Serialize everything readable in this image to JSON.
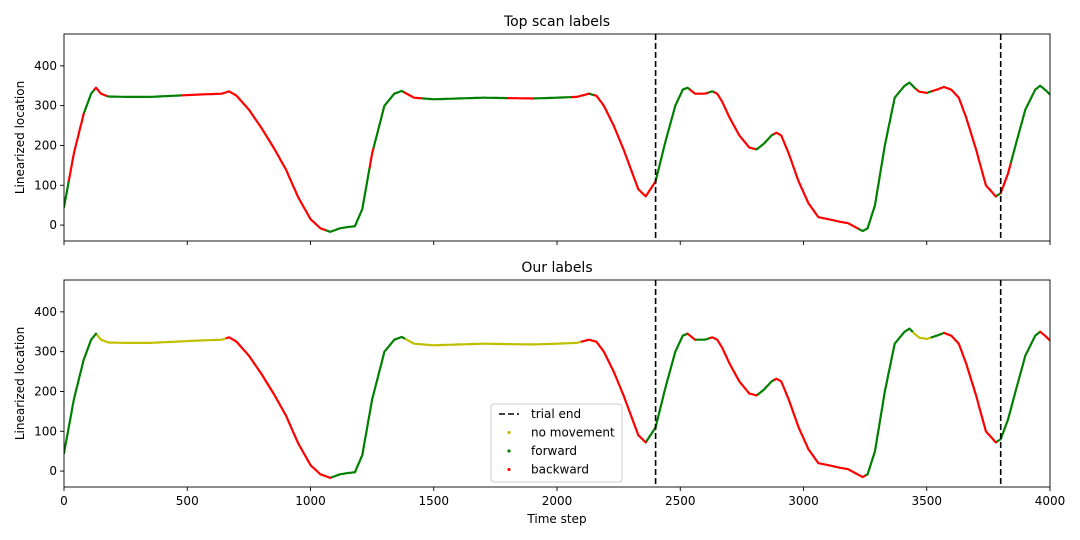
{
  "chart_data": [
    {
      "type": "line",
      "title": "Top scan labels",
      "xlabel": "",
      "ylabel": "Linearized location",
      "xlim": [
        0,
        4000
      ],
      "ylim": [
        -40,
        480
      ],
      "xticks": [
        0,
        500,
        1000,
        1500,
        2000,
        2500,
        3000,
        3500,
        4000
      ],
      "show_x_tick_labels": false,
      "yticks": [
        0,
        100,
        200,
        300,
        400
      ],
      "trial_end_x": [
        2400,
        3800
      ],
      "trajectory": {
        "x": [
          0,
          40,
          80,
          110,
          130,
          150,
          180,
          250,
          350,
          450,
          550,
          640,
          670,
          700,
          750,
          800,
          850,
          900,
          950,
          1000,
          1040,
          1080,
          1120,
          1150,
          1180,
          1210,
          1250,
          1300,
          1340,
          1370,
          1390,
          1420,
          1500,
          1600,
          1700,
          1800,
          1900,
          2000,
          2080,
          2130,
          2160,
          2190,
          2230,
          2270,
          2300,
          2330,
          2360,
          2400,
          2440,
          2480,
          2510,
          2530,
          2560,
          2600,
          2630,
          2650,
          2670,
          2700,
          2740,
          2780,
          2810,
          2840,
          2870,
          2890,
          2910,
          2940,
          2980,
          3020,
          3060,
          3100,
          3150,
          3180,
          3210,
          3240,
          3260,
          3290,
          3330,
          3370,
          3410,
          3430,
          3450,
          3470,
          3500,
          3540,
          3570,
          3600,
          3630,
          3660,
          3700,
          3740,
          3780,
          3800,
          3830,
          3860,
          3900,
          3940,
          3960,
          3980,
          4000
        ],
        "y": [
          45,
          180,
          280,
          330,
          345,
          330,
          323,
          322,
          322,
          325,
          328,
          330,
          336,
          325,
          290,
          245,
          195,
          140,
          70,
          15,
          -8,
          -17,
          -8,
          -5,
          -3,
          40,
          180,
          300,
          330,
          337,
          330,
          320,
          316,
          318,
          320,
          319,
          318,
          320,
          322,
          330,
          325,
          300,
          250,
          190,
          140,
          90,
          72,
          110,
          210,
          300,
          340,
          345,
          330,
          330,
          336,
          330,
          310,
          270,
          225,
          195,
          190,
          205,
          225,
          232,
          225,
          180,
          110,
          55,
          20,
          15,
          8,
          5,
          -5,
          -15,
          -8,
          50,
          200,
          320,
          350,
          358,
          345,
          335,
          332,
          340,
          347,
          340,
          320,
          270,
          190,
          100,
          72,
          80,
          130,
          200,
          290,
          340,
          350,
          340,
          328
        ]
      },
      "series": [
        {
          "name": "forward",
          "color": "#008000",
          "segments": [
            [
              0,
              20
            ],
            [
              80,
              125
            ],
            [
              170,
              480
            ],
            [
              1060,
              1240
            ],
            [
              1255,
              1380
            ],
            [
              1450,
              1800
            ],
            [
              1900,
              2060
            ],
            [
              2130,
              2150
            ],
            [
              2400,
              2540
            ],
            [
              2610,
              2640
            ],
            [
              2800,
              2880
            ],
            [
              3220,
              3460
            ],
            [
              3500,
              3520
            ],
            [
              3780,
              3800
            ],
            [
              3840,
              4000
            ]
          ]
        },
        {
          "name": "backward",
          "color": "#ff0000",
          "segments": [
            [
              20,
              80
            ],
            [
              125,
              170
            ],
            [
              480,
              1060
            ],
            [
              1240,
              1255
            ],
            [
              1380,
              1450
            ],
            [
              1800,
              1900
            ],
            [
              2060,
              2130
            ],
            [
              2150,
              2400
            ],
            [
              2540,
              2610
            ],
            [
              2640,
              2800
            ],
            [
              2880,
              3220
            ],
            [
              3460,
              3500
            ],
            [
              3520,
              3780
            ],
            [
              3800,
              3840
            ]
          ]
        }
      ]
    },
    {
      "type": "line",
      "title": "Our labels",
      "xlabel": "Time step",
      "ylabel": "Linearized location",
      "xlim": [
        0,
        4000
      ],
      "ylim": [
        -40,
        480
      ],
      "xticks": [
        0,
        500,
        1000,
        1500,
        2000,
        2500,
        3000,
        3500,
        4000
      ],
      "show_x_tick_labels": true,
      "yticks": [
        0,
        100,
        200,
        300,
        400
      ],
      "trial_end_x": [
        2400,
        3800
      ],
      "legend": {
        "position": "center-bottom",
        "entries": [
          {
            "label": "trial end",
            "style": "dashed",
            "color": "#000000"
          },
          {
            "label": "no movement",
            "style": "dot",
            "color": "#bfbf00"
          },
          {
            "label": "forward",
            "style": "dot",
            "color": "#008000"
          },
          {
            "label": "backward",
            "style": "dot",
            "color": "#ff0000"
          }
        ]
      },
      "trajectory": {
        "x": [
          0,
          40,
          80,
          110,
          130,
          150,
          180,
          250,
          350,
          450,
          550,
          640,
          670,
          700,
          750,
          800,
          850,
          900,
          950,
          1000,
          1040,
          1080,
          1120,
          1150,
          1180,
          1210,
          1250,
          1300,
          1340,
          1370,
          1390,
          1420,
          1500,
          1600,
          1700,
          1800,
          1900,
          2000,
          2080,
          2130,
          2160,
          2190,
          2230,
          2270,
          2300,
          2330,
          2360,
          2400,
          2440,
          2480,
          2510,
          2530,
          2560,
          2600,
          2630,
          2650,
          2670,
          2700,
          2740,
          2780,
          2810,
          2840,
          2870,
          2890,
          2910,
          2940,
          2980,
          3020,
          3060,
          3100,
          3150,
          3180,
          3210,
          3240,
          3260,
          3290,
          3330,
          3370,
          3410,
          3430,
          3450,
          3470,
          3500,
          3540,
          3570,
          3600,
          3630,
          3660,
          3700,
          3740,
          3780,
          3800,
          3830,
          3860,
          3900,
          3940,
          3960,
          3980,
          4000
        ],
        "y": [
          45,
          180,
          280,
          330,
          345,
          330,
          323,
          322,
          322,
          325,
          328,
          330,
          336,
          325,
          290,
          245,
          195,
          140,
          70,
          15,
          -8,
          -17,
          -8,
          -5,
          -3,
          40,
          180,
          300,
          330,
          337,
          330,
          320,
          316,
          318,
          320,
          319,
          318,
          320,
          322,
          330,
          325,
          300,
          250,
          190,
          140,
          90,
          72,
          110,
          210,
          300,
          340,
          345,
          330,
          330,
          336,
          330,
          310,
          270,
          225,
          195,
          190,
          205,
          225,
          232,
          225,
          180,
          110,
          55,
          20,
          15,
          8,
          5,
          -5,
          -15,
          -8,
          50,
          200,
          320,
          350,
          358,
          345,
          335,
          332,
          340,
          347,
          340,
          320,
          270,
          190,
          100,
          72,
          80,
          130,
          200,
          290,
          340,
          350,
          340,
          328
        ]
      },
      "series": [
        {
          "name": "no movement",
          "color": "#bfbf00",
          "segments": [
            [
              130,
              660
            ],
            [
              1380,
              2100
            ],
            [
              3440,
              3520
            ]
          ]
        },
        {
          "name": "forward",
          "color": "#008000",
          "segments": [
            [
              0,
              130
            ],
            [
              1080,
              1380
            ],
            [
              2360,
              2530
            ],
            [
              2560,
              2620
            ],
            [
              2810,
              2880
            ],
            [
              3250,
              3440
            ],
            [
              3520,
              3570
            ],
            [
              3780,
              3960
            ]
          ]
        },
        {
          "name": "backward",
          "color": "#ff0000",
          "segments": [
            [
              660,
              1080
            ],
            [
              2100,
              2360
            ],
            [
              2530,
              2560
            ],
            [
              2620,
              2810
            ],
            [
              2880,
              3250
            ],
            [
              3570,
              3780
            ],
            [
              3960,
              4000
            ]
          ]
        }
      ]
    }
  ]
}
